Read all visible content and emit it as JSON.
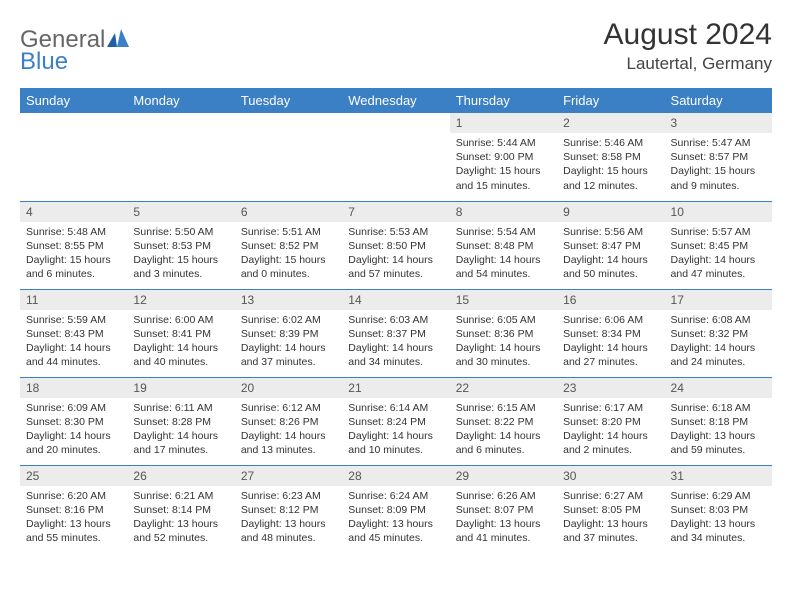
{
  "logo": {
    "word1": "General",
    "word2": "Blue"
  },
  "title": "August 2024",
  "subtitle": "Lautertal, Germany",
  "day_headers": [
    "Sunday",
    "Monday",
    "Tuesday",
    "Wednesday",
    "Thursday",
    "Friday",
    "Saturday"
  ],
  "colors": {
    "header_bg": "#3b7fc4",
    "daynum_bg": "#ececec",
    "border": "#3b7fc4"
  },
  "weeks": [
    [
      null,
      null,
      null,
      null,
      {
        "n": "1",
        "sr": "5:44 AM",
        "ss": "9:00 PM",
        "dl": "15 hours and 15 minutes."
      },
      {
        "n": "2",
        "sr": "5:46 AM",
        "ss": "8:58 PM",
        "dl": "15 hours and 12 minutes."
      },
      {
        "n": "3",
        "sr": "5:47 AM",
        "ss": "8:57 PM",
        "dl": "15 hours and 9 minutes."
      }
    ],
    [
      {
        "n": "4",
        "sr": "5:48 AM",
        "ss": "8:55 PM",
        "dl": "15 hours and 6 minutes."
      },
      {
        "n": "5",
        "sr": "5:50 AM",
        "ss": "8:53 PM",
        "dl": "15 hours and 3 minutes."
      },
      {
        "n": "6",
        "sr": "5:51 AM",
        "ss": "8:52 PM",
        "dl": "15 hours and 0 minutes."
      },
      {
        "n": "7",
        "sr": "5:53 AM",
        "ss": "8:50 PM",
        "dl": "14 hours and 57 minutes."
      },
      {
        "n": "8",
        "sr": "5:54 AM",
        "ss": "8:48 PM",
        "dl": "14 hours and 54 minutes."
      },
      {
        "n": "9",
        "sr": "5:56 AM",
        "ss": "8:47 PM",
        "dl": "14 hours and 50 minutes."
      },
      {
        "n": "10",
        "sr": "5:57 AM",
        "ss": "8:45 PM",
        "dl": "14 hours and 47 minutes."
      }
    ],
    [
      {
        "n": "11",
        "sr": "5:59 AM",
        "ss": "8:43 PM",
        "dl": "14 hours and 44 minutes."
      },
      {
        "n": "12",
        "sr": "6:00 AM",
        "ss": "8:41 PM",
        "dl": "14 hours and 40 minutes."
      },
      {
        "n": "13",
        "sr": "6:02 AM",
        "ss": "8:39 PM",
        "dl": "14 hours and 37 minutes."
      },
      {
        "n": "14",
        "sr": "6:03 AM",
        "ss": "8:37 PM",
        "dl": "14 hours and 34 minutes."
      },
      {
        "n": "15",
        "sr": "6:05 AM",
        "ss": "8:36 PM",
        "dl": "14 hours and 30 minutes."
      },
      {
        "n": "16",
        "sr": "6:06 AM",
        "ss": "8:34 PM",
        "dl": "14 hours and 27 minutes."
      },
      {
        "n": "17",
        "sr": "6:08 AM",
        "ss": "8:32 PM",
        "dl": "14 hours and 24 minutes."
      }
    ],
    [
      {
        "n": "18",
        "sr": "6:09 AM",
        "ss": "8:30 PM",
        "dl": "14 hours and 20 minutes."
      },
      {
        "n": "19",
        "sr": "6:11 AM",
        "ss": "8:28 PM",
        "dl": "14 hours and 17 minutes."
      },
      {
        "n": "20",
        "sr": "6:12 AM",
        "ss": "8:26 PM",
        "dl": "14 hours and 13 minutes."
      },
      {
        "n": "21",
        "sr": "6:14 AM",
        "ss": "8:24 PM",
        "dl": "14 hours and 10 minutes."
      },
      {
        "n": "22",
        "sr": "6:15 AM",
        "ss": "8:22 PM",
        "dl": "14 hours and 6 minutes."
      },
      {
        "n": "23",
        "sr": "6:17 AM",
        "ss": "8:20 PM",
        "dl": "14 hours and 2 minutes."
      },
      {
        "n": "24",
        "sr": "6:18 AM",
        "ss": "8:18 PM",
        "dl": "13 hours and 59 minutes."
      }
    ],
    [
      {
        "n": "25",
        "sr": "6:20 AM",
        "ss": "8:16 PM",
        "dl": "13 hours and 55 minutes."
      },
      {
        "n": "26",
        "sr": "6:21 AM",
        "ss": "8:14 PM",
        "dl": "13 hours and 52 minutes."
      },
      {
        "n": "27",
        "sr": "6:23 AM",
        "ss": "8:12 PM",
        "dl": "13 hours and 48 minutes."
      },
      {
        "n": "28",
        "sr": "6:24 AM",
        "ss": "8:09 PM",
        "dl": "13 hours and 45 minutes."
      },
      {
        "n": "29",
        "sr": "6:26 AM",
        "ss": "8:07 PM",
        "dl": "13 hours and 41 minutes."
      },
      {
        "n": "30",
        "sr": "6:27 AM",
        "ss": "8:05 PM",
        "dl": "13 hours and 37 minutes."
      },
      {
        "n": "31",
        "sr": "6:29 AM",
        "ss": "8:03 PM",
        "dl": "13 hours and 34 minutes."
      }
    ]
  ],
  "labels": {
    "sunrise": "Sunrise: ",
    "sunset": "Sunset: ",
    "daylight": "Daylight: "
  }
}
